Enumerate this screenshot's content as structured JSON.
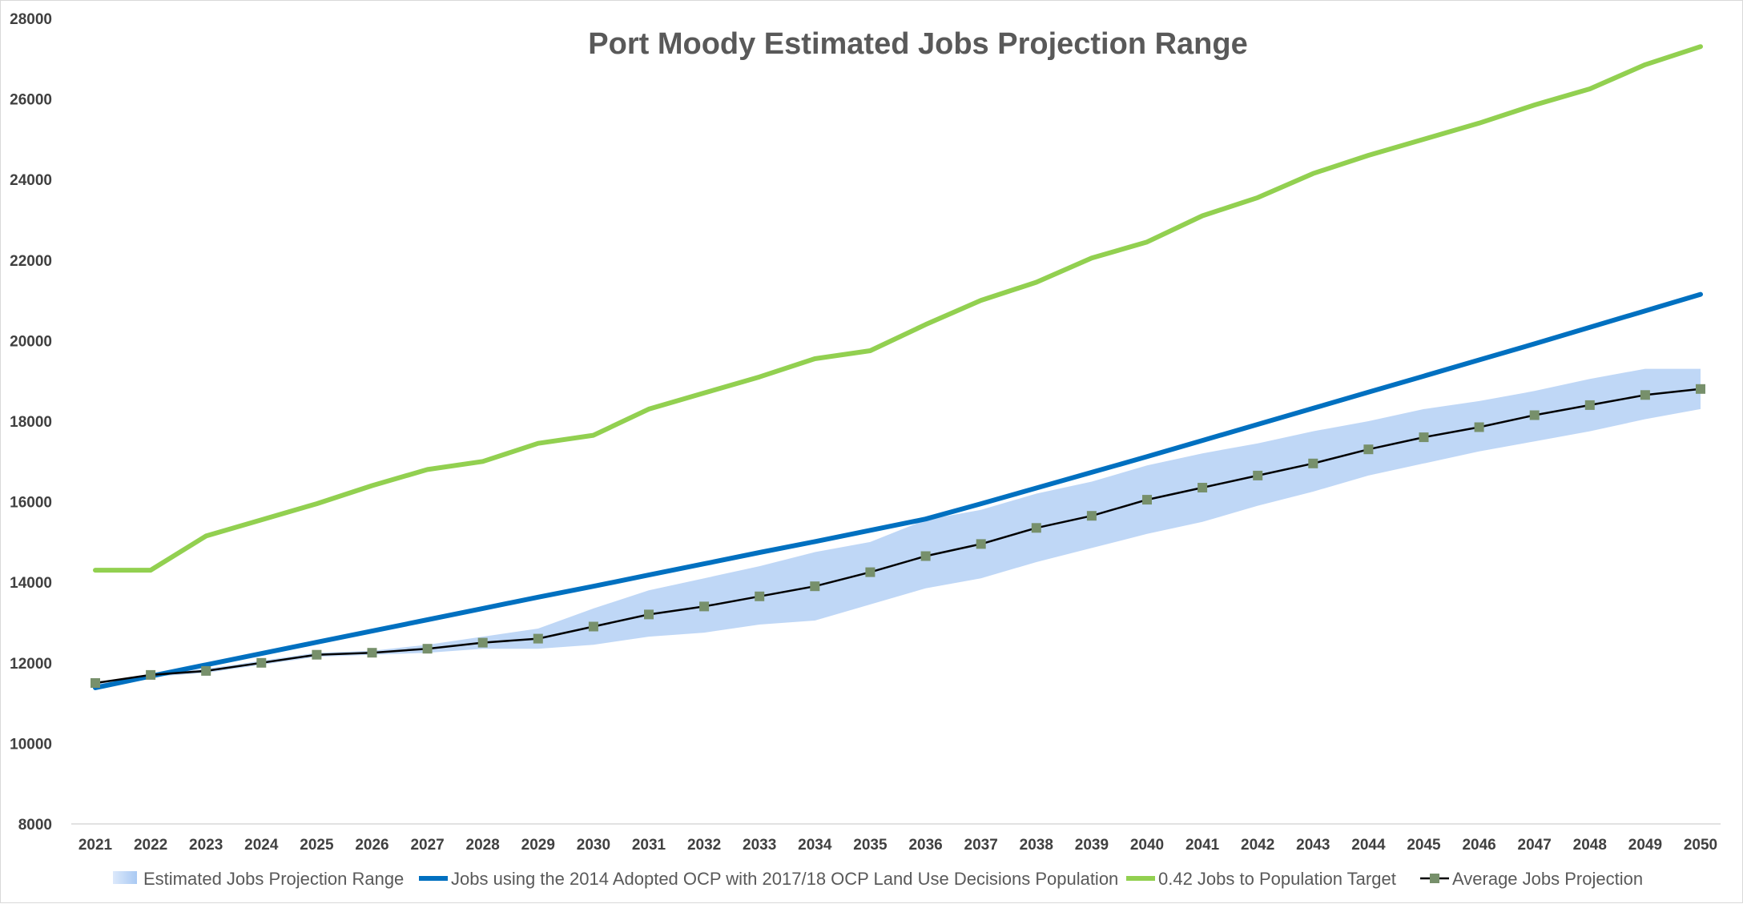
{
  "chart_data": {
    "type": "line",
    "title": "Port Moody Estimated Jobs Projection Range",
    "xlabel": "",
    "ylabel": "",
    "ylim": [
      8000,
      28000
    ],
    "yticks": [
      "8000",
      "10000",
      "12000",
      "14000",
      "16000",
      "18000",
      "20000",
      "22000",
      "24000",
      "26000",
      "28000"
    ],
    "grid": false,
    "legend_position": "bottom",
    "categories": [
      "2021",
      "2022",
      "2023",
      "2024",
      "2025",
      "2026",
      "2027",
      "2028",
      "2029",
      "2030",
      "2031",
      "2032",
      "2033",
      "2034",
      "2035",
      "2036",
      "2037",
      "2038",
      "2039",
      "2040",
      "2041",
      "2042",
      "2043",
      "2044",
      "2045",
      "2046",
      "2047",
      "2048",
      "2049",
      "2050"
    ],
    "range": {
      "name": "Estimated Jobs Projection Range",
      "color": "#a9c9f3",
      "upper": [
        11500,
        11700,
        11850,
        12050,
        12250,
        12300,
        12450,
        12650,
        12850,
        13350,
        13800,
        14100,
        14400,
        14750,
        15000,
        15550,
        15800,
        16200,
        16500,
        16900,
        17200,
        17450,
        17750,
        18000,
        18300,
        18500,
        18750,
        19050,
        19300,
        19300
      ],
      "lower": [
        11450,
        11650,
        11750,
        11950,
        12150,
        12200,
        12250,
        12350,
        12350,
        12450,
        12650,
        12750,
        12950,
        13050,
        13450,
        13850,
        14100,
        14500,
        14850,
        15200,
        15500,
        15900,
        16250,
        16650,
        16950,
        17250,
        17500,
        17750,
        18050,
        18300
      ]
    },
    "series": [
      {
        "name": "Jobs using the 2014 Adopted OCP with 2017/18 OCP Land Use Decisions Population",
        "color": "#0070c0",
        "values": [
          11380,
          11670,
          11950,
          12230,
          12510,
          12790,
          13070,
          13350,
          13630,
          13900,
          14180,
          14460,
          14740,
          15010,
          15290,
          15570,
          15950,
          16340,
          16730,
          17120,
          17520,
          17920,
          18320,
          18720,
          19120,
          19520,
          19920,
          20330,
          20740,
          21150
        ]
      },
      {
        "name": "0.42 Jobs to Population Target",
        "color": "#92d050",
        "values": [
          14300,
          14300,
          15150,
          15550,
          15950,
          16400,
          16800,
          17000,
          17450,
          17650,
          18300,
          18700,
          19100,
          19550,
          19750,
          20400,
          21000,
          21450,
          22050,
          22450,
          23100,
          23550,
          24150,
          24600,
          25000,
          25400,
          25850,
          26250,
          26850,
          27300
        ]
      },
      {
        "name": "Average Jobs Projection",
        "color": "#000000",
        "marker_color": "#77906b",
        "values": [
          11500,
          11700,
          11800,
          12000,
          12200,
          12250,
          12350,
          12500,
          12600,
          12900,
          13200,
          13400,
          13650,
          13900,
          14250,
          14650,
          14950,
          15350,
          15650,
          16050,
          16350,
          16650,
          16950,
          17300,
          17600,
          17850,
          18150,
          18400,
          18650,
          18800
        ]
      }
    ]
  }
}
